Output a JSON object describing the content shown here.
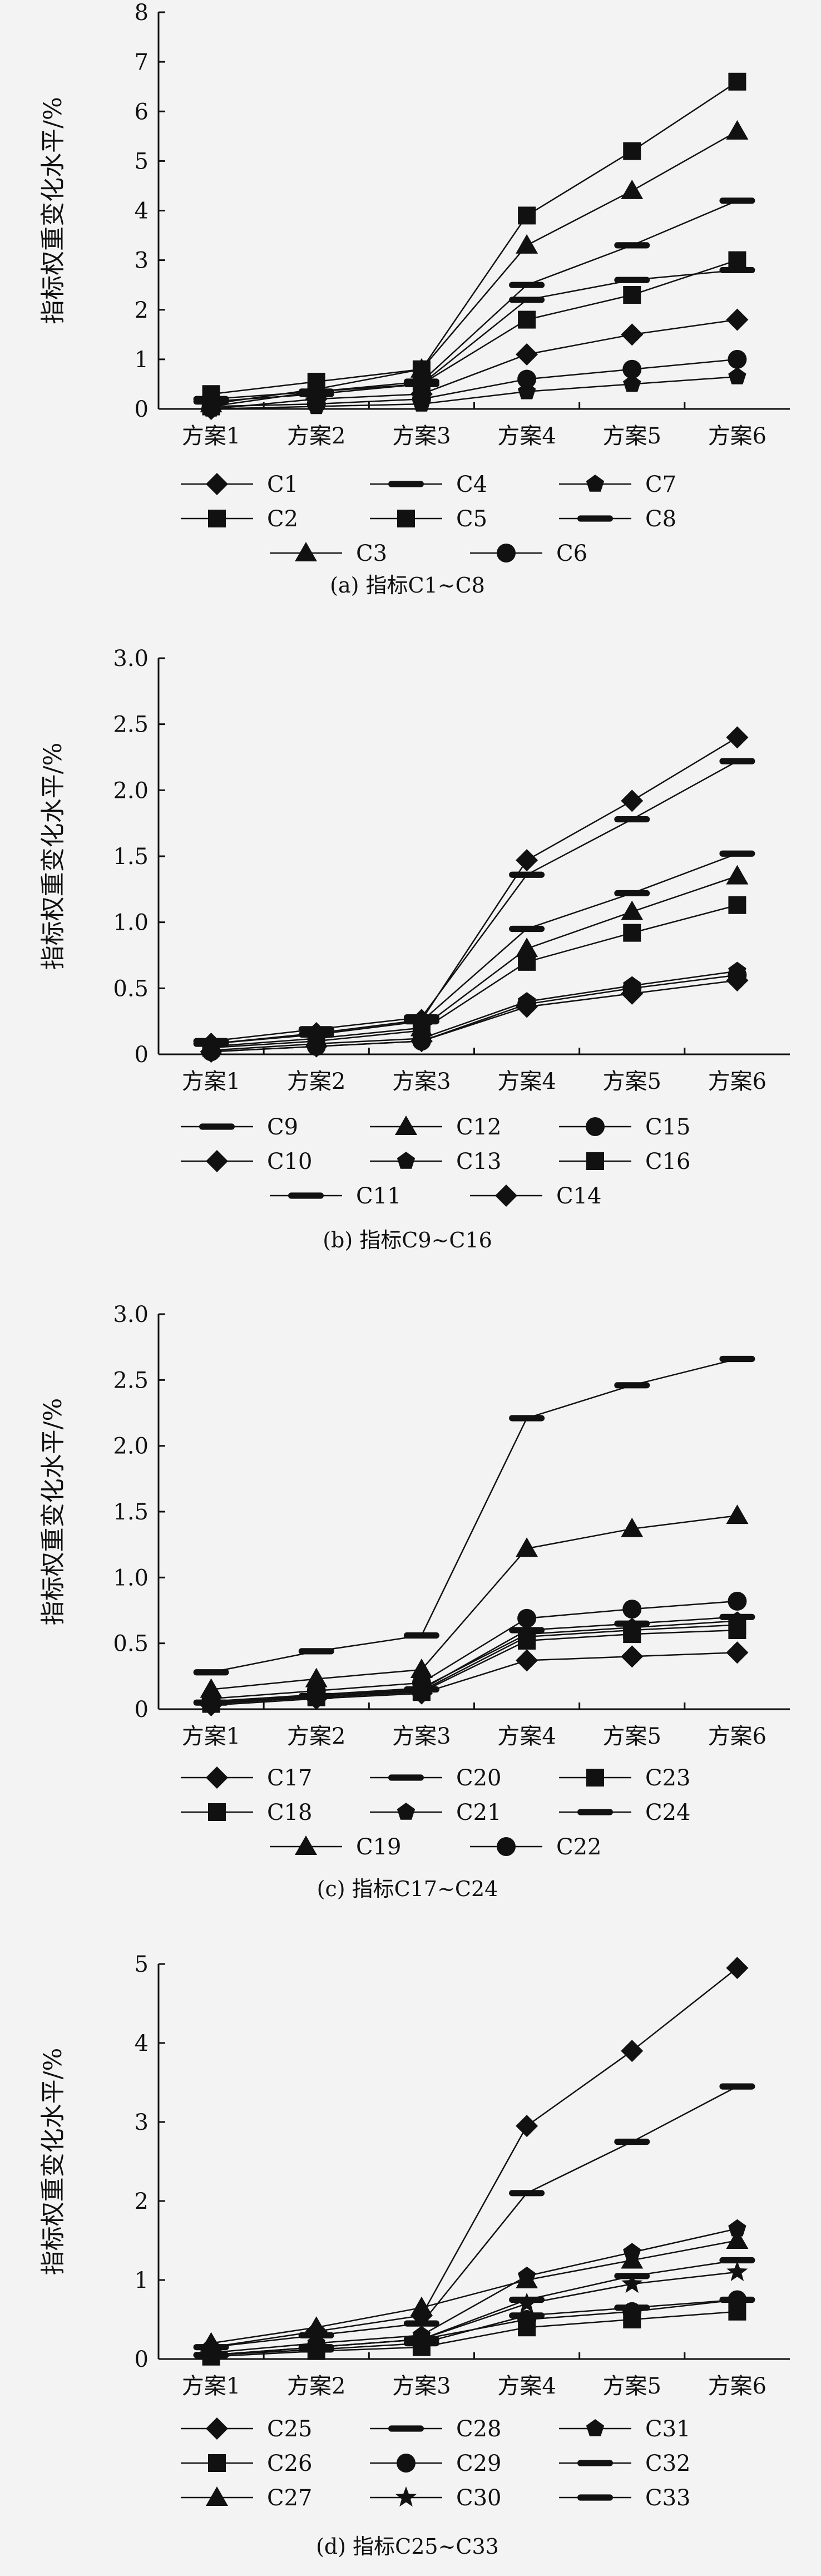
{
  "chart_data": [
    {
      "type": "line",
      "caption": "(a) 指标C1~C8",
      "ylabel": "指标权重变化水平/%",
      "categories": [
        "方案1",
        "方案2",
        "方案3",
        "方案4",
        "方案5",
        "方案6"
      ],
      "ylim": [
        0,
        8
      ],
      "yticks": [
        "0",
        "1",
        "2",
        "3",
        "4",
        "5",
        "6",
        "7",
        "8"
      ],
      "legend": [
        [
          "C1",
          "C4",
          "C7"
        ],
        [
          "C2",
          "C5",
          "C8"
        ],
        [
          "C3",
          "C6"
        ]
      ],
      "series": [
        {
          "name": "C1",
          "marker": "diamond",
          "values": [
            0.0,
            0.2,
            0.3,
            1.1,
            1.5,
            1.8
          ]
        },
        {
          "name": "C2",
          "marker": "square",
          "values": [
            0.05,
            0.35,
            0.5,
            1.8,
            2.3,
            3.0
          ]
        },
        {
          "name": "C3",
          "marker": "triangle",
          "values": [
            0.1,
            0.4,
            0.8,
            3.3,
            4.4,
            5.6
          ]
        },
        {
          "name": "C4",
          "marker": "dash",
          "values": [
            0.2,
            0.35,
            0.55,
            2.5,
            3.3,
            4.2
          ]
        },
        {
          "name": "C5",
          "marker": "square",
          "values": [
            0.3,
            0.55,
            0.8,
            3.9,
            5.2,
            6.6
          ]
        },
        {
          "name": "C6",
          "marker": "circle",
          "values": [
            0.05,
            0.1,
            0.2,
            0.6,
            0.8,
            1.0
          ]
        },
        {
          "name": "C7",
          "marker": "pentagon",
          "values": [
            0.0,
            0.05,
            0.1,
            0.35,
            0.5,
            0.65
          ]
        },
        {
          "name": "C8",
          "marker": "dash",
          "values": [
            0.15,
            0.3,
            0.5,
            2.2,
            2.6,
            2.8
          ]
        }
      ]
    },
    {
      "type": "line",
      "caption": "(b) 指标C9~C16",
      "ylabel": "指标权重变化水平/%",
      "categories": [
        "方案1",
        "方案2",
        "方案3",
        "方案4",
        "方案5",
        "方案6"
      ],
      "ylim": [
        0,
        3.0
      ],
      "yticks": [
        "0",
        "0.5",
        "1.0",
        "1.5",
        "2.0",
        "2.5",
        "3.0"
      ],
      "legend": [
        [
          "C9",
          "C12",
          "C15"
        ],
        [
          "C10",
          "C13",
          "C16"
        ],
        [
          "C11",
          "C14"
        ]
      ],
      "series": [
        {
          "name": "C9",
          "marker": "dash",
          "values": [
            0.08,
            0.15,
            0.25,
            0.95,
            1.22,
            1.52
          ]
        },
        {
          "name": "C10",
          "marker": "diamond",
          "values": [
            0.08,
            0.16,
            0.26,
            1.47,
            1.92,
            2.4
          ]
        },
        {
          "name": "C11",
          "marker": "dash",
          "values": [
            0.1,
            0.19,
            0.28,
            1.36,
            1.78,
            2.22
          ]
        },
        {
          "name": "C12",
          "marker": "triangle",
          "values": [
            0.06,
            0.12,
            0.2,
            0.8,
            1.08,
            1.35
          ]
        },
        {
          "name": "C13",
          "marker": "pentagon",
          "values": [
            0.03,
            0.08,
            0.12,
            0.4,
            0.52,
            0.63
          ]
        },
        {
          "name": "C14",
          "marker": "diamond",
          "values": [
            0.02,
            0.06,
            0.1,
            0.36,
            0.46,
            0.56
          ]
        },
        {
          "name": "C15",
          "marker": "circle",
          "values": [
            0.02,
            0.06,
            0.1,
            0.38,
            0.5,
            0.6
          ]
        },
        {
          "name": "C16",
          "marker": "square",
          "values": [
            0.05,
            0.1,
            0.18,
            0.7,
            0.92,
            1.13
          ]
        }
      ]
    },
    {
      "type": "line",
      "caption": "(c) 指标C17~C24",
      "ylabel": "指标权重变化水平/%",
      "categories": [
        "方案1",
        "方案2",
        "方案3",
        "方案4",
        "方案5",
        "方案6"
      ],
      "ylim": [
        0,
        3.0
      ],
      "yticks": [
        "0",
        "0.5",
        "1.0",
        "1.5",
        "2.0",
        "2.5",
        "3.0"
      ],
      "legend": [
        [
          "C17",
          "C20",
          "C23"
        ],
        [
          "C18",
          "C21",
          "C24"
        ],
        [
          "C19",
          "C22"
        ]
      ],
      "series": [
        {
          "name": "C17",
          "marker": "diamond",
          "values": [
            0.03,
            0.08,
            0.12,
            0.37,
            0.4,
            0.43
          ]
        },
        {
          "name": "C18",
          "marker": "square",
          "values": [
            0.05,
            0.1,
            0.14,
            0.55,
            0.6,
            0.64
          ]
        },
        {
          "name": "C19",
          "marker": "triangle",
          "values": [
            0.15,
            0.23,
            0.3,
            1.22,
            1.37,
            1.47
          ]
        },
        {
          "name": "C20",
          "marker": "dash",
          "values": [
            0.28,
            0.44,
            0.56,
            2.21,
            2.46,
            2.66
          ]
        },
        {
          "name": "C21",
          "marker": "pentagon",
          "values": [
            0.06,
            0.11,
            0.16,
            0.57,
            0.62,
            0.67
          ]
        },
        {
          "name": "C22",
          "marker": "circle",
          "values": [
            0.08,
            0.14,
            0.2,
            0.69,
            0.76,
            0.82
          ]
        },
        {
          "name": "C23",
          "marker": "square",
          "values": [
            0.04,
            0.09,
            0.13,
            0.52,
            0.57,
            0.6
          ]
        },
        {
          "name": "C24",
          "marker": "dash",
          "values": [
            0.05,
            0.1,
            0.15,
            0.6,
            0.65,
            0.7
          ]
        }
      ]
    },
    {
      "type": "line",
      "caption": "(d) 指标C25~C33",
      "ylabel": "指标权重变化水平/%",
      "categories": [
        "方案1",
        "方案2",
        "方案3",
        "方案4",
        "方案5",
        "方案6"
      ],
      "ylim": [
        0,
        5
      ],
      "yticks": [
        "0",
        "1",
        "2",
        "3",
        "4",
        "5"
      ],
      "legend": [
        [
          "C25",
          "C28",
          "C31"
        ],
        [
          "C26",
          "C29",
          "C32"
        ],
        [
          "C27",
          "C30",
          "C33"
        ]
      ],
      "series": [
        {
          "name": "C25",
          "marker": "diamond",
          "values": [
            0.15,
            0.35,
            0.55,
            2.95,
            3.9,
            4.95
          ]
        },
        {
          "name": "C26",
          "marker": "square",
          "values": [
            0.03,
            0.1,
            0.15,
            0.4,
            0.5,
            0.6
          ]
        },
        {
          "name": "C27",
          "marker": "triangle",
          "values": [
            0.2,
            0.4,
            0.65,
            1.0,
            1.25,
            1.5
          ]
        },
        {
          "name": "C28",
          "marker": "dash",
          "values": [
            0.15,
            0.3,
            0.45,
            2.1,
            2.75,
            3.45
          ]
        },
        {
          "name": "C29",
          "marker": "circle",
          "values": [
            0.05,
            0.15,
            0.25,
            0.5,
            0.6,
            0.75
          ]
        },
        {
          "name": "C30",
          "marker": "star",
          "values": [
            0.05,
            0.15,
            0.25,
            0.7,
            0.95,
            1.1
          ]
        },
        {
          "name": "C31",
          "marker": "pentagon",
          "values": [
            0.08,
            0.2,
            0.3,
            1.05,
            1.35,
            1.65
          ]
        },
        {
          "name": "C32",
          "marker": "dash",
          "values": [
            0.05,
            0.15,
            0.25,
            0.75,
            1.05,
            1.25
          ]
        },
        {
          "name": "C33",
          "marker": "dash",
          "values": [
            0.05,
            0.12,
            0.2,
            0.55,
            0.65,
            0.75
          ]
        }
      ]
    }
  ]
}
